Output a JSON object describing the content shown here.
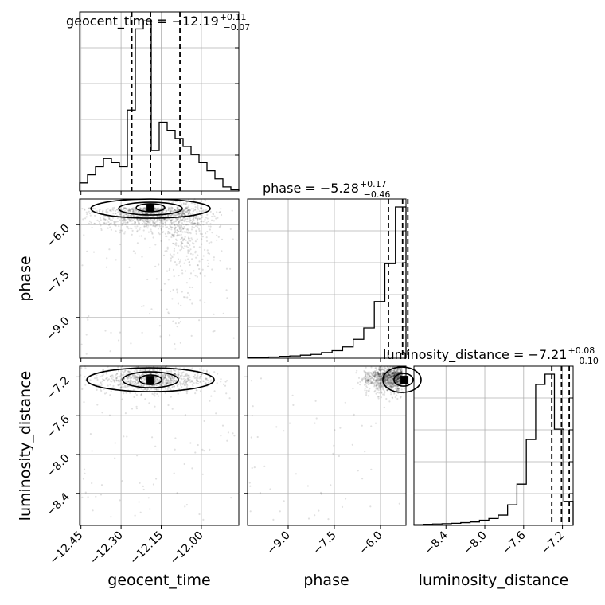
{
  "chart_data": {
    "type": "corner",
    "parameters": [
      "geocent_time",
      "phase",
      "luminosity_distance"
    ],
    "titles": [
      {
        "param": "geocent_time",
        "text": "geocent_time = −12.19",
        "sup": "+0.11",
        "sub": "−0.07",
        "median": -12.19,
        "plus": 0.11,
        "minus": 0.07
      },
      {
        "param": "phase",
        "text": "phase = −5.28",
        "sup": "+0.17",
        "sub": "−0.46",
        "median": -5.28,
        "plus": 0.17,
        "minus": 0.46
      },
      {
        "param": "luminosity_distance",
        "text": "luminosity_distance = −7.21",
        "sup": "+0.08",
        "sub": "−0.10",
        "median": -7.21,
        "plus": 0.08,
        "minus": 0.1
      }
    ],
    "ranges": {
      "geocent_time": [
        -12.455,
        -11.86
      ],
      "phase": [
        -10.32,
        -5.17
      ],
      "luminosity_distance": [
        -8.73,
        -7.09
      ]
    },
    "ticks": {
      "geocent_time": [
        "−12.45",
        "−12.30",
        "−12.15",
        "−12.00"
      ],
      "phase": [
        "−9.0",
        "−7.5",
        "−6.0"
      ],
      "luminosity_distance": [
        "−8.4",
        "−8.0",
        "−7.6",
        "−7.2"
      ]
    },
    "tick_values": {
      "geocent_time": [
        -12.45,
        -12.3,
        -12.15,
        -12.0
      ],
      "phase": [
        -9.0,
        -7.5,
        -6.0
      ],
      "luminosity_distance": [
        -8.4,
        -8.0,
        -7.6,
        -7.2
      ]
    },
    "quantiles": {
      "geocent_time": [
        -12.26,
        -12.19,
        -12.08
      ],
      "phase": [
        -5.74,
        -5.28,
        -5.11
      ],
      "luminosity_distance": [
        -7.31,
        -7.21,
        -7.13
      ]
    },
    "histograms": {
      "geocent_time": [
        2,
        4,
        6,
        8,
        7,
        6,
        20,
        40,
        42,
        10,
        17,
        15,
        13,
        11,
        9,
        7,
        5,
        3,
        1,
        0.3
      ],
      "phase": [
        0.1,
        0.2,
        0.3,
        0.5,
        0.6,
        0.8,
        1,
        1.5,
        2,
        3,
        5,
        8,
        15,
        25,
        40
      ],
      "luminosity_distance": [
        0.2,
        0.3,
        0.4,
        0.5,
        0.6,
        0.8,
        1,
        1.5,
        2,
        3,
        6,
        12,
        25,
        41,
        44,
        28,
        7
      ]
    },
    "xlabels": [
      "geocent_time",
      "phase",
      "luminosity_distance"
    ],
    "ylabels": [
      "phase",
      "luminosity_distance"
    ],
    "grid": true
  }
}
